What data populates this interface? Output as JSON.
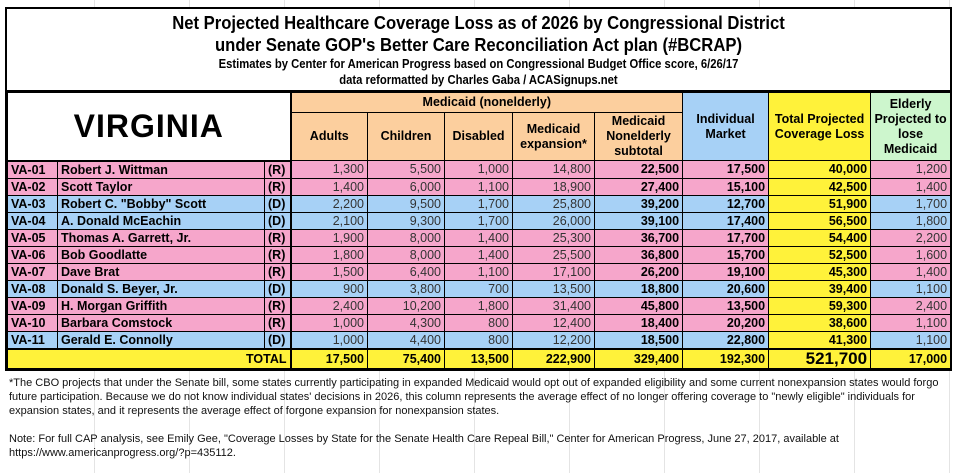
{
  "title": {
    "line1": "Net Projected Healthcare Coverage Loss as of 2026 by Congressional District",
    "line2": "under Senate GOP's Better Care Reconciliation Act plan (#BCRAP)",
    "line3": "Estimates by Center for American Progress based on Congressional Budget Office score, 6/26/17",
    "line4": "data reformatted by Charles Gaba / ACASignups.net"
  },
  "state": "VIRGINIA",
  "headers": {
    "medicaid_group": "Medicaid (nonelderly)",
    "adults": "Adults",
    "children": "Children",
    "disabled": "Disabled",
    "expansion": "Medicaid expansion*",
    "subtotal": "Medicaid Nonelderly subtotal",
    "individual": "Individual Market",
    "total": "Total Projected Coverage Loss",
    "elderly": "Elderly Projected to lose Medicaid"
  },
  "colors": {
    "republican": "#f6a6cb",
    "democrat": "#a7d1f6",
    "medicaid": "#fccf9e",
    "total": "#fff23a",
    "elderly": "#cdf6cd"
  },
  "rows": [
    {
      "district": "VA-01",
      "name": "Robert J. Wittman",
      "party": "(R)",
      "adults": "1,300",
      "children": "5,500",
      "disabled": "1,000",
      "expansion": "14,800",
      "subtotal": "22,500",
      "individual": "17,500",
      "total": "40,000",
      "elderly": "1,200"
    },
    {
      "district": "VA-02",
      "name": "Scott Taylor",
      "party": "(R)",
      "adults": "1,400",
      "children": "6,000",
      "disabled": "1,100",
      "expansion": "18,900",
      "subtotal": "27,400",
      "individual": "15,100",
      "total": "42,500",
      "elderly": "1,400"
    },
    {
      "district": "VA-03",
      "name": "Robert C. \"Bobby\" Scott",
      "party": "(D)",
      "adults": "2,200",
      "children": "9,500",
      "disabled": "1,700",
      "expansion": "25,800",
      "subtotal": "39,200",
      "individual": "12,700",
      "total": "51,900",
      "elderly": "1,700"
    },
    {
      "district": "VA-04",
      "name": "A. Donald McEachin",
      "party": "(D)",
      "adults": "2,100",
      "children": "9,300",
      "disabled": "1,700",
      "expansion": "26,000",
      "subtotal": "39,100",
      "individual": "17,400",
      "total": "56,500",
      "elderly": "1,800"
    },
    {
      "district": "VA-05",
      "name": "Thomas A. Garrett, Jr.",
      "party": "(R)",
      "adults": "1,900",
      "children": "8,000",
      "disabled": "1,400",
      "expansion": "25,300",
      "subtotal": "36,700",
      "individual": "17,700",
      "total": "54,400",
      "elderly": "2,200"
    },
    {
      "district": "VA-06",
      "name": "Bob Goodlatte",
      "party": "(R)",
      "adults": "1,800",
      "children": "8,000",
      "disabled": "1,400",
      "expansion": "25,500",
      "subtotal": "36,800",
      "individual": "15,700",
      "total": "52,500",
      "elderly": "1,600"
    },
    {
      "district": "VA-07",
      "name": "Dave Brat",
      "party": "(R)",
      "adults": "1,500",
      "children": "6,400",
      "disabled": "1,100",
      "expansion": "17,100",
      "subtotal": "26,200",
      "individual": "19,100",
      "total": "45,300",
      "elderly": "1,400"
    },
    {
      "district": "VA-08",
      "name": "Donald S. Beyer, Jr.",
      "party": "(D)",
      "adults": "900",
      "children": "3,800",
      "disabled": "700",
      "expansion": "13,500",
      "subtotal": "18,800",
      "individual": "20,600",
      "total": "39,400",
      "elderly": "1,100"
    },
    {
      "district": "VA-09",
      "name": "H. Morgan Griffith",
      "party": "(R)",
      "adults": "2,400",
      "children": "10,200",
      "disabled": "1,800",
      "expansion": "31,400",
      "subtotal": "45,800",
      "individual": "13,500",
      "total": "59,300",
      "elderly": "2,400"
    },
    {
      "district": "VA-10",
      "name": "Barbara Comstock",
      "party": "(R)",
      "adults": "1,000",
      "children": "4,300",
      "disabled": "800",
      "expansion": "12,400",
      "subtotal": "18,400",
      "individual": "20,200",
      "total": "38,600",
      "elderly": "1,100"
    },
    {
      "district": "VA-11",
      "name": "Gerald E. Connolly",
      "party": "(D)",
      "adults": "1,000",
      "children": "4,400",
      "disabled": "800",
      "expansion": "12,200",
      "subtotal": "18,500",
      "individual": "22,800",
      "total": "41,300",
      "elderly": "1,100"
    }
  ],
  "totals": {
    "label": "TOTAL",
    "adults": "17,500",
    "children": "75,400",
    "disabled": "13,500",
    "expansion": "222,900",
    "subtotal": "329,400",
    "individual": "192,300",
    "total": "521,700",
    "elderly": "17,000"
  },
  "notes": {
    "footnote": "*The CBO projects that under the Senate bill, some states currently participating in expanded Medicaid would opt out of expanded eligibility and some current nonexpansion states would forgo future participation. Because we do not know individual states' decisions in 2026, this column represents the average effect of no longer offering coverage to \"newly eligible\" individuals for expansion states, and it represents the average effect of forgone expansion for nonexpansion states.",
    "source": "Note: For full CAP analysis, see Emily Gee, \"Coverage Losses by State for the Senate Health Care Repeal Bill,\" Center for American Progress, June 27, 2017, available at https://www.americanprogress.org/?p=435112."
  }
}
